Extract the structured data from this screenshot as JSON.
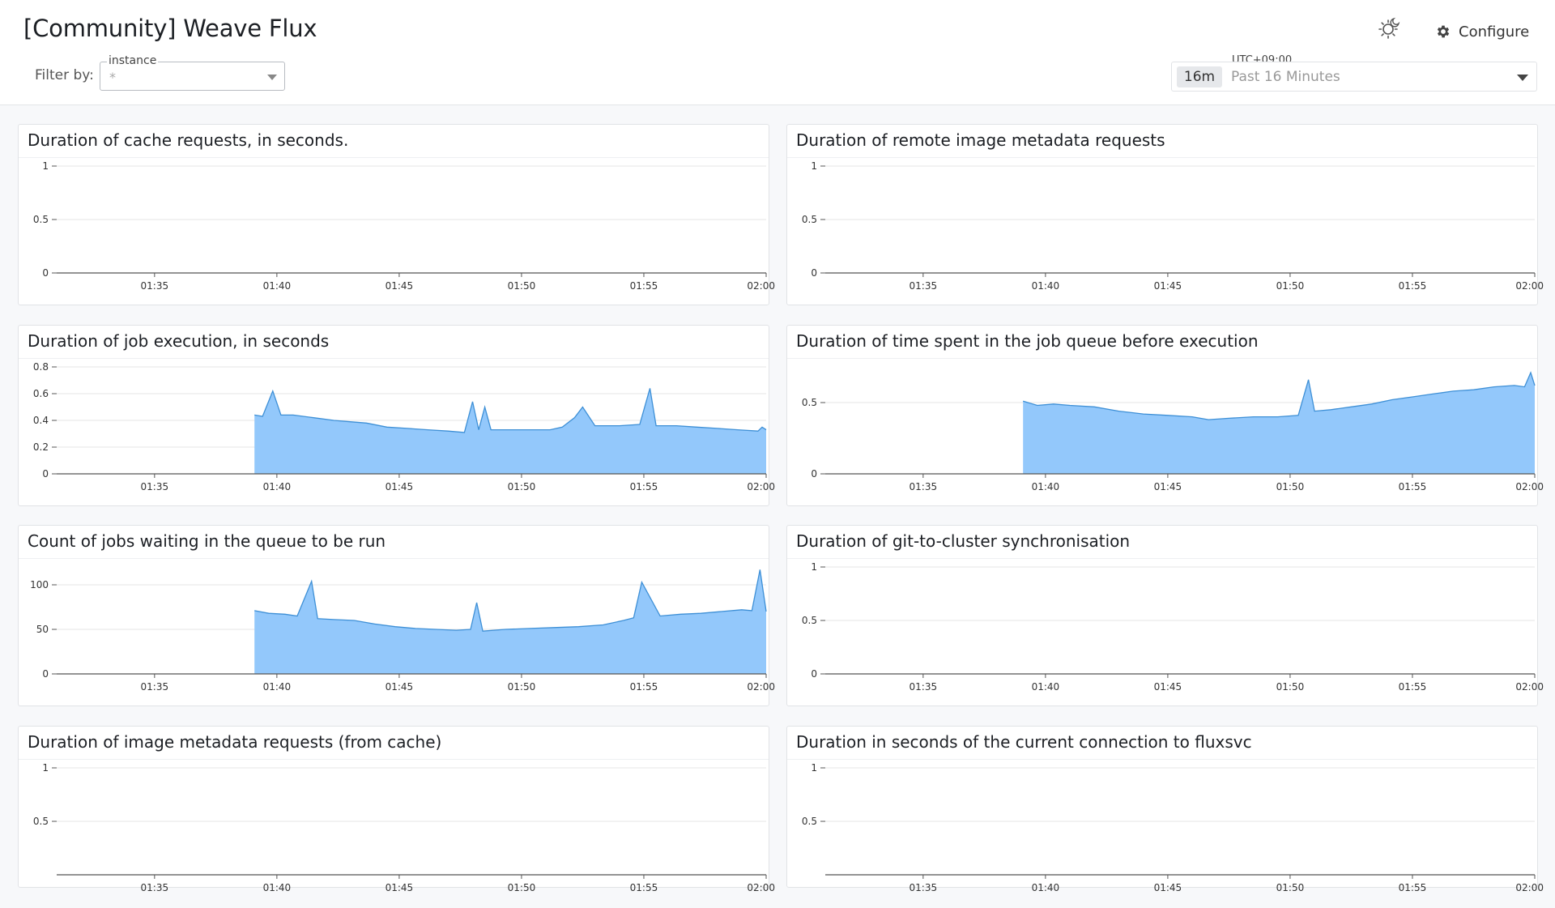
{
  "header": {
    "title": "[Community] Weave Flux",
    "filter_label": "Filter by:",
    "instance_filter": {
      "legend": "instance",
      "value": "*"
    },
    "configure_label": "Configure",
    "timezone": "UTC+09:00",
    "time_range": {
      "badge": "16m",
      "label": "Past 16 Minutes"
    }
  },
  "icons": {
    "theme": "sun-moon-icon",
    "settings": "gear-icon",
    "dropdown": "chevron-down-icon"
  },
  "colors": {
    "series_fill": "#93c8fb",
    "series_line": "#3d8fd6",
    "grid": "#e6e6e6",
    "axis": "#555555"
  },
  "time_ticks": [
    "01:35",
    "01:40",
    "01:45",
    "01:50",
    "01:55",
    "02:00"
  ],
  "panels": [
    {
      "title": "Duration of cache requests, in seconds."
    },
    {
      "title": "Duration of remote image metadata requests"
    },
    {
      "title": "Duration of job execution, in seconds"
    },
    {
      "title": "Duration of time spent in the job queue before execution"
    },
    {
      "title": "Count of jobs waiting in the queue to be run"
    },
    {
      "title": "Duration of git-to-cluster synchronisation"
    },
    {
      "title": "Duration of image metadata requests (from cache)"
    },
    {
      "title": "Duration in seconds of the current connection to fluxsvc"
    }
  ],
  "chart_data": [
    {
      "type": "area",
      "x_range": [
        "01:31",
        "02:00"
      ],
      "ylim": [
        0,
        1
      ],
      "y_ticks": [
        0,
        0.5,
        1
      ],
      "series": []
    },
    {
      "type": "area",
      "x_range": [
        "01:31",
        "02:00"
      ],
      "ylim": [
        0,
        1
      ],
      "y_ticks": [
        0,
        0.5,
        1
      ],
      "series": []
    },
    {
      "type": "area",
      "x_range": [
        "01:31",
        "02:00"
      ],
      "ylim": [
        0,
        0.8
      ],
      "y_ticks": [
        0,
        0.2,
        0.4,
        0.6,
        0.8
      ],
      "series": [
        {
          "x": [
            "01:39:05",
            "01:39:25",
            "01:39:50",
            "01:40:10",
            "01:40:40",
            "01:41:30",
            "01:42:20",
            "01:43:00",
            "01:43:40",
            "01:44:30",
            "01:45:20",
            "01:46:10",
            "01:47:00",
            "01:47:40",
            "01:48:00",
            "01:48:15",
            "01:48:30",
            "01:48:45",
            "01:49:30",
            "01:50:20",
            "01:51:10",
            "01:51:40",
            "01:52:10",
            "01:52:30",
            "01:53:00",
            "01:54:00",
            "01:54:50",
            "01:55:15",
            "01:55:30",
            "01:56:20",
            "01:57:10",
            "01:58:00",
            "01:58:50",
            "01:59:40",
            "01:59:50",
            "02:00:00"
          ],
          "values": [
            0.44,
            0.43,
            0.62,
            0.44,
            0.44,
            0.42,
            0.4,
            0.39,
            0.38,
            0.35,
            0.34,
            0.33,
            0.32,
            0.31,
            0.54,
            0.33,
            0.5,
            0.33,
            0.33,
            0.33,
            0.33,
            0.35,
            0.42,
            0.5,
            0.36,
            0.36,
            0.37,
            0.64,
            0.36,
            0.36,
            0.35,
            0.34,
            0.33,
            0.32,
            0.35,
            0.33
          ]
        }
      ]
    },
    {
      "type": "area",
      "x_range": [
        "01:31",
        "02:00"
      ],
      "ylim": [
        0,
        0.75
      ],
      "y_ticks": [
        0,
        0.5
      ],
      "series": [
        {
          "x": [
            "01:39:05",
            "01:39:40",
            "01:40:20",
            "01:41:00",
            "01:42:00",
            "01:43:00",
            "01:44:00",
            "01:45:00",
            "01:46:00",
            "01:46:40",
            "01:47:30",
            "01:48:30",
            "01:49:30",
            "01:50:20",
            "01:50:45",
            "01:51:00",
            "01:51:40",
            "01:52:30",
            "01:53:20",
            "01:54:10",
            "01:55:00",
            "01:55:50",
            "01:56:40",
            "01:57:30",
            "01:58:20",
            "01:59:10",
            "01:59:35",
            "01:59:50",
            "02:00:00"
          ],
          "values": [
            0.51,
            0.48,
            0.49,
            0.48,
            0.47,
            0.44,
            0.42,
            0.41,
            0.4,
            0.38,
            0.39,
            0.4,
            0.4,
            0.41,
            0.66,
            0.44,
            0.45,
            0.47,
            0.49,
            0.52,
            0.54,
            0.56,
            0.58,
            0.59,
            0.61,
            0.62,
            0.61,
            0.71,
            0.62
          ]
        }
      ]
    },
    {
      "type": "area",
      "x_range": [
        "01:31",
        "02:00"
      ],
      "ylim": [
        0,
        120
      ],
      "y_ticks": [
        0,
        50,
        100
      ],
      "series": [
        {
          "x": [
            "01:39:05",
            "01:39:40",
            "01:40:20",
            "01:40:50",
            "01:41:25",
            "01:41:40",
            "01:42:20",
            "01:43:10",
            "01:44:00",
            "01:44:50",
            "01:45:40",
            "01:46:30",
            "01:47:20",
            "01:47:55",
            "01:48:10",
            "01:48:25",
            "01:49:20",
            "01:50:20",
            "01:51:20",
            "01:52:20",
            "01:53:20",
            "01:54:10",
            "01:54:35",
            "01:54:55",
            "01:55:40",
            "01:56:30",
            "01:57:20",
            "01:58:10",
            "01:59:00",
            "01:59:25",
            "01:59:45",
            "02:00:00"
          ],
          "values": [
            71,
            68,
            67,
            65,
            104,
            62,
            61,
            60,
            56,
            53,
            51,
            50,
            49,
            50,
            80,
            48,
            50,
            51,
            52,
            53,
            55,
            60,
            63,
            103,
            65,
            67,
            68,
            70,
            72,
            71,
            117,
            70
          ]
        }
      ]
    },
    {
      "type": "area",
      "x_range": [
        "01:31",
        "02:00"
      ],
      "ylim": [
        0,
        1
      ],
      "y_ticks": [
        0,
        0.5,
        1
      ],
      "series": []
    },
    {
      "type": "area",
      "x_range": [
        "01:31",
        "02:00"
      ],
      "ylim": [
        0,
        1
      ],
      "y_ticks": [
        0.5,
        1
      ],
      "series": []
    },
    {
      "type": "area",
      "x_range": [
        "01:31",
        "02:00"
      ],
      "ylim": [
        0,
        1
      ],
      "y_ticks": [
        0.5,
        1
      ],
      "series": []
    }
  ]
}
